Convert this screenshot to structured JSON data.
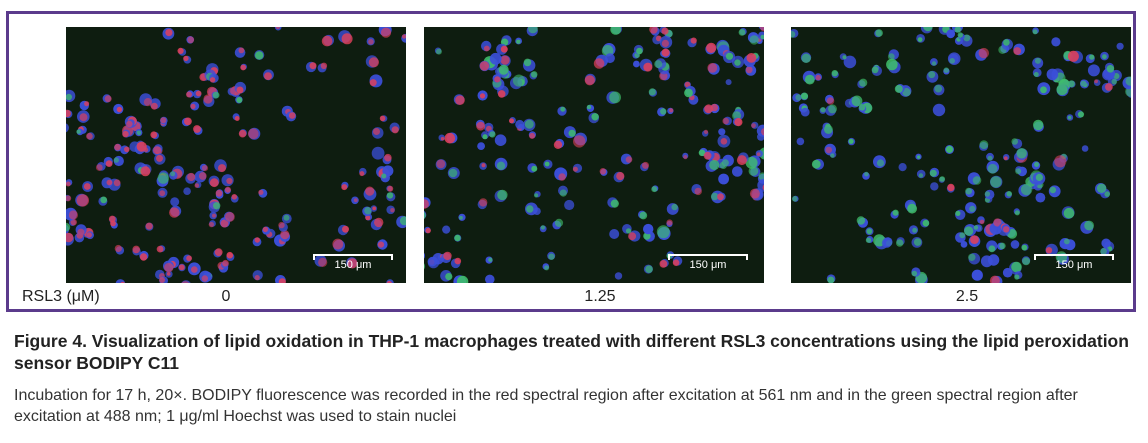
{
  "figure": {
    "frame_color": "#5b3b8c",
    "panels": [
      {
        "scale_label": "150 μm",
        "condition_value": "0",
        "dominant_stain": "red"
      },
      {
        "scale_label": "150 μm",
        "condition_value": "1.25",
        "dominant_stain": "mixed"
      },
      {
        "scale_label": "150 μm",
        "condition_value": "2.5",
        "dominant_stain": "green"
      }
    ],
    "condition_axis_label": "RSL3 (μM)",
    "colors": {
      "nucleus": "#3b4fd9",
      "oxidized_red": "#e0405a",
      "reduced_green": "#3fbf6a",
      "background": "#0e1d10"
    }
  },
  "caption": {
    "title": "Figure 4. Visualization of lipid oxidation in THP-1 macrophages treated with different RSL3 concentrations using the lipid peroxidation sensor BODIPY C11",
    "body": "Incubation for 17 h, 20×. BODIPY fluorescence was recorded in the red spectral region after excitation at 561 nm and in the green spectral region after excitation at 488 nm; 1 μg/ml Hoechst was used to stain nuclei"
  }
}
